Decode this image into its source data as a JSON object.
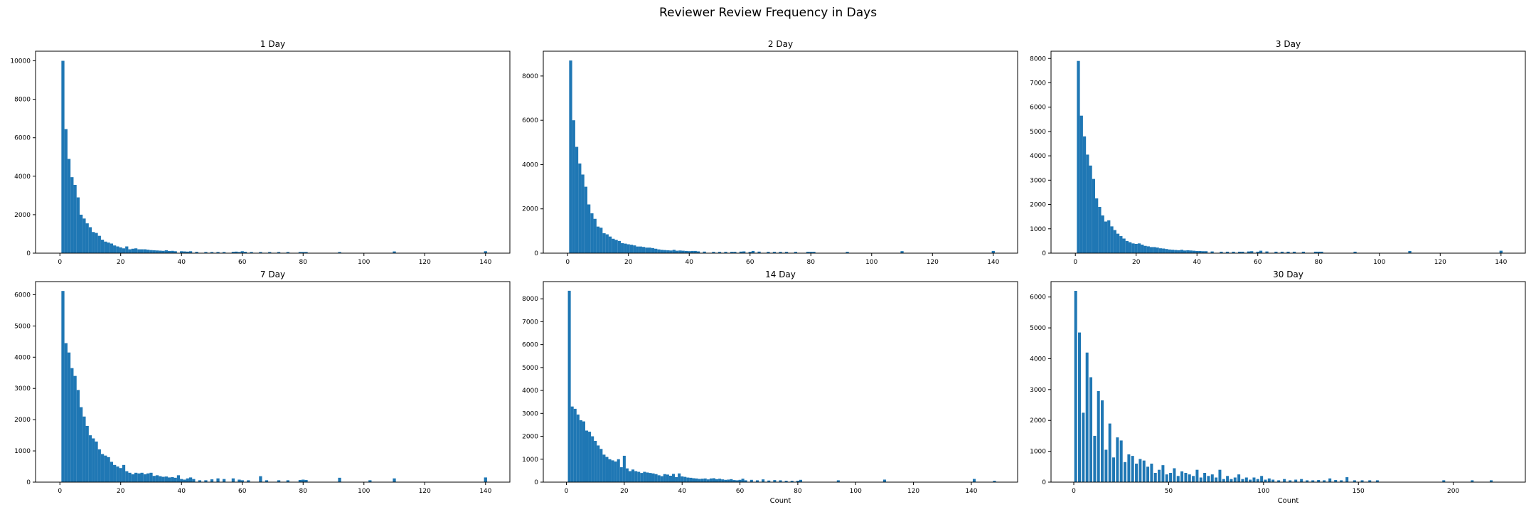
{
  "figure": {
    "suptitle": "Reviewer Review Frequency in Days",
    "bar_color": "#1f77b4"
  },
  "chart_data": [
    {
      "type": "bar",
      "title": "1 Day",
      "xlabel": "",
      "ylabel": "",
      "xlim": [
        -8,
        148
      ],
      "ylim": [
        0,
        10500
      ],
      "xticks": [
        0,
        20,
        40,
        60,
        80,
        100,
        120,
        140
      ],
      "yticks": [
        0,
        2000,
        4000,
        6000,
        8000,
        10000
      ],
      "bin_width": 1,
      "bins": [
        1,
        2,
        3,
        4,
        5,
        6,
        7,
        8,
        9,
        10,
        11,
        12,
        13,
        14,
        15,
        16,
        17,
        18,
        19,
        20,
        21,
        22,
        23,
        24,
        25,
        26,
        27,
        28,
        29,
        30,
        31,
        32,
        33,
        34,
        35,
        36,
        37,
        38,
        40,
        41,
        42,
        43,
        45,
        48,
        50,
        52,
        54,
        57,
        58,
        59,
        60,
        61,
        63,
        66,
        69,
        72,
        75,
        79,
        80,
        81,
        92,
        110,
        140
      ],
      "values": [
        10000,
        6450,
        4900,
        3950,
        3550,
        2900,
        2000,
        1800,
        1550,
        1350,
        1100,
        1050,
        900,
        700,
        600,
        550,
        500,
        400,
        350,
        300,
        250,
        350,
        200,
        230,
        250,
        200,
        200,
        200,
        180,
        160,
        150,
        140,
        130,
        120,
        150,
        110,
        120,
        100,
        100,
        90,
        80,
        100,
        70,
        60,
        60,
        60,
        60,
        70,
        80,
        60,
        100,
        70,
        60,
        60,
        60,
        60,
        60,
        60,
        60,
        60,
        60,
        90,
        100
      ]
    },
    {
      "type": "bar",
      "title": "2 Day",
      "xlabel": "",
      "ylabel": "",
      "xlim": [
        -8,
        148
      ],
      "ylim": [
        0,
        9120
      ],
      "xticks": [
        0,
        20,
        40,
        60,
        80,
        100,
        120,
        140
      ],
      "yticks": [
        0,
        2000,
        4000,
        6000,
        8000
      ],
      "bin_width": 1,
      "bins": [
        1,
        2,
        3,
        4,
        5,
        6,
        7,
        8,
        9,
        10,
        11,
        12,
        13,
        14,
        15,
        16,
        17,
        18,
        19,
        20,
        21,
        22,
        23,
        24,
        25,
        26,
        27,
        28,
        29,
        30,
        31,
        32,
        33,
        34,
        35,
        36,
        37,
        38,
        39,
        40,
        41,
        42,
        43,
        45,
        48,
        50,
        52,
        54,
        55,
        57,
        58,
        60,
        61,
        63,
        66,
        68,
        70,
        72,
        75,
        79,
        80,
        81,
        92,
        110,
        140
      ],
      "values": [
        8700,
        6000,
        4800,
        4050,
        3550,
        3000,
        2200,
        1800,
        1550,
        1200,
        1150,
        900,
        850,
        750,
        650,
        600,
        550,
        450,
        430,
        400,
        380,
        350,
        300,
        300,
        280,
        250,
        250,
        230,
        200,
        170,
        150,
        140,
        130,
        120,
        150,
        110,
        120,
        110,
        100,
        90,
        100,
        100,
        80,
        70,
        60,
        60,
        60,
        60,
        60,
        70,
        80,
        60,
        100,
        70,
        60,
        60,
        60,
        60,
        60,
        60,
        60,
        60,
        60,
        90,
        100
      ]
    },
    {
      "type": "bar",
      "title": "3 Day",
      "xlabel": "",
      "ylabel": "",
      "xlim": [
        -8,
        148
      ],
      "ylim": [
        0,
        8300
      ],
      "xticks": [
        0,
        20,
        40,
        60,
        80,
        100,
        120,
        140
      ],
      "yticks": [
        0,
        1000,
        2000,
        3000,
        4000,
        5000,
        6000,
        7000,
        8000
      ],
      "bin_width": 1,
      "bins": [
        1,
        2,
        3,
        4,
        5,
        6,
        7,
        8,
        9,
        10,
        11,
        12,
        13,
        14,
        15,
        16,
        17,
        18,
        19,
        20,
        21,
        22,
        23,
        24,
        25,
        26,
        27,
        28,
        29,
        30,
        31,
        32,
        33,
        34,
        35,
        36,
        37,
        38,
        39,
        40,
        41,
        42,
        43,
        45,
        48,
        50,
        52,
        54,
        55,
        57,
        58,
        60,
        61,
        63,
        66,
        68,
        70,
        72,
        75,
        79,
        80,
        81,
        92,
        110,
        140
      ],
      "values": [
        7900,
        5650,
        4800,
        4050,
        3600,
        3050,
        2250,
        1900,
        1550,
        1300,
        1350,
        1100,
        950,
        800,
        700,
        600,
        500,
        450,
        400,
        380,
        400,
        350,
        300,
        280,
        250,
        250,
        230,
        200,
        190,
        170,
        150,
        140,
        130,
        120,
        140,
        110,
        120,
        110,
        100,
        90,
        90,
        80,
        80,
        70,
        60,
        60,
        60,
        60,
        60,
        70,
        80,
        60,
        100,
        70,
        60,
        60,
        60,
        60,
        60,
        60,
        60,
        60,
        60,
        90,
        100
      ]
    },
    {
      "type": "bar",
      "title": "7 Day",
      "xlabel": "",
      "ylabel": "",
      "xlim": [
        -8,
        148
      ],
      "ylim": [
        0,
        6420
      ],
      "xticks": [
        0,
        20,
        40,
        60,
        80,
        100,
        120,
        140
      ],
      "yticks": [
        0,
        1000,
        2000,
        3000,
        4000,
        5000,
        6000
      ],
      "bin_width": 1,
      "bins": [
        1,
        2,
        3,
        4,
        5,
        6,
        7,
        8,
        9,
        10,
        11,
        12,
        13,
        14,
        15,
        16,
        17,
        18,
        19,
        20,
        21,
        22,
        23,
        24,
        25,
        26,
        27,
        28,
        29,
        30,
        31,
        32,
        33,
        34,
        35,
        36,
        37,
        38,
        39,
        40,
        41,
        42,
        43,
        44,
        46,
        48,
        50,
        52,
        54,
        57,
        59,
        60,
        62,
        66,
        68,
        72,
        75,
        79,
        80,
        81,
        92,
        102,
        110,
        140
      ],
      "values": [
        6120,
        4450,
        4150,
        3650,
        3400,
        2950,
        2400,
        2100,
        1800,
        1500,
        1400,
        1300,
        1050,
        900,
        850,
        800,
        650,
        550,
        500,
        450,
        550,
        350,
        300,
        250,
        300,
        280,
        300,
        250,
        280,
        300,
        200,
        220,
        190,
        170,
        180,
        150,
        160,
        140,
        220,
        100,
        80,
        120,
        150,
        100,
        60,
        60,
        90,
        120,
        100,
        120,
        80,
        60,
        60,
        190,
        60,
        60,
        60,
        70,
        80,
        70,
        140,
        60,
        120,
        150
      ]
    },
    {
      "type": "bar",
      "title": "14 Day",
      "xlabel": "Count",
      "ylabel": "",
      "xlim": [
        -8,
        156
      ],
      "ylim": [
        0,
        8750
      ],
      "xticks": [
        0,
        20,
        40,
        60,
        80,
        100,
        120,
        140
      ],
      "yticks": [
        0,
        1000,
        2000,
        3000,
        4000,
        5000,
        6000,
        7000,
        8000
      ],
      "bin_width": 1,
      "bins": [
        1,
        2,
        3,
        4,
        5,
        6,
        7,
        8,
        9,
        10,
        11,
        12,
        13,
        14,
        15,
        16,
        17,
        18,
        19,
        20,
        21,
        22,
        23,
        24,
        25,
        26,
        27,
        28,
        29,
        30,
        31,
        32,
        33,
        34,
        35,
        36,
        37,
        38,
        39,
        40,
        41,
        42,
        43,
        44,
        45,
        46,
        47,
        48,
        49,
        50,
        51,
        52,
        53,
        54,
        55,
        56,
        57,
        58,
        59,
        60,
        61,
        62,
        64,
        66,
        68,
        70,
        72,
        74,
        76,
        78,
        80,
        81,
        94,
        110,
        141,
        148
      ],
      "values": [
        8350,
        3300,
        3200,
        2950,
        2700,
        2650,
        2250,
        2200,
        2000,
        1800,
        1600,
        1450,
        1200,
        1100,
        1000,
        950,
        900,
        1000,
        650,
        1150,
        600,
        480,
        550,
        480,
        450,
        400,
        450,
        420,
        400,
        380,
        350,
        300,
        260,
        350,
        330,
        280,
        360,
        220,
        380,
        250,
        230,
        200,
        190,
        170,
        160,
        140,
        150,
        160,
        120,
        160,
        170,
        130,
        150,
        120,
        100,
        110,
        130,
        90,
        80,
        100,
        150,
        80,
        100,
        80,
        120,
        70,
        90,
        80,
        60,
        60,
        60,
        100,
        80,
        110,
        140,
        60
      ]
    },
    {
      "type": "bar",
      "title": "30 Day",
      "xlabel": "Count",
      "ylabel": "",
      "xlim": [
        -12,
        238
      ],
      "ylim": [
        0,
        6500
      ],
      "xticks": [
        0,
        50,
        100,
        150,
        200
      ],
      "yticks": [
        0,
        1000,
        2000,
        3000,
        4000,
        5000,
        6000
      ],
      "bin_width": 1.5,
      "bins": [
        1,
        3,
        5,
        7,
        9,
        11,
        13,
        15,
        17,
        19,
        21,
        23,
        25,
        27,
        29,
        31,
        33,
        35,
        37,
        39,
        41,
        43,
        45,
        47,
        49,
        51,
        53,
        55,
        57,
        59,
        61,
        63,
        65,
        67,
        69,
        71,
        73,
        75,
        77,
        79,
        81,
        83,
        85,
        87,
        89,
        91,
        93,
        95,
        97,
        99,
        101,
        103,
        105,
        108,
        111,
        114,
        117,
        120,
        123,
        126,
        129,
        132,
        135,
        138,
        141,
        144,
        148,
        152,
        156,
        160,
        195,
        210,
        220
      ],
      "values": [
        6200,
        4850,
        2250,
        4200,
        3400,
        1500,
        2950,
        2650,
        1050,
        1900,
        800,
        1450,
        1350,
        650,
        900,
        850,
        600,
        750,
        700,
        500,
        600,
        300,
        400,
        550,
        250,
        300,
        450,
        200,
        350,
        300,
        250,
        200,
        400,
        150,
        300,
        200,
        250,
        150,
        400,
        100,
        200,
        100,
        150,
        250,
        100,
        150,
        80,
        150,
        100,
        200,
        80,
        120,
        80,
        60,
        100,
        60,
        80,
        100,
        60,
        60,
        70,
        60,
        120,
        70,
        60,
        160,
        60,
        60,
        60,
        60,
        60,
        60,
        60
      ]
    }
  ]
}
